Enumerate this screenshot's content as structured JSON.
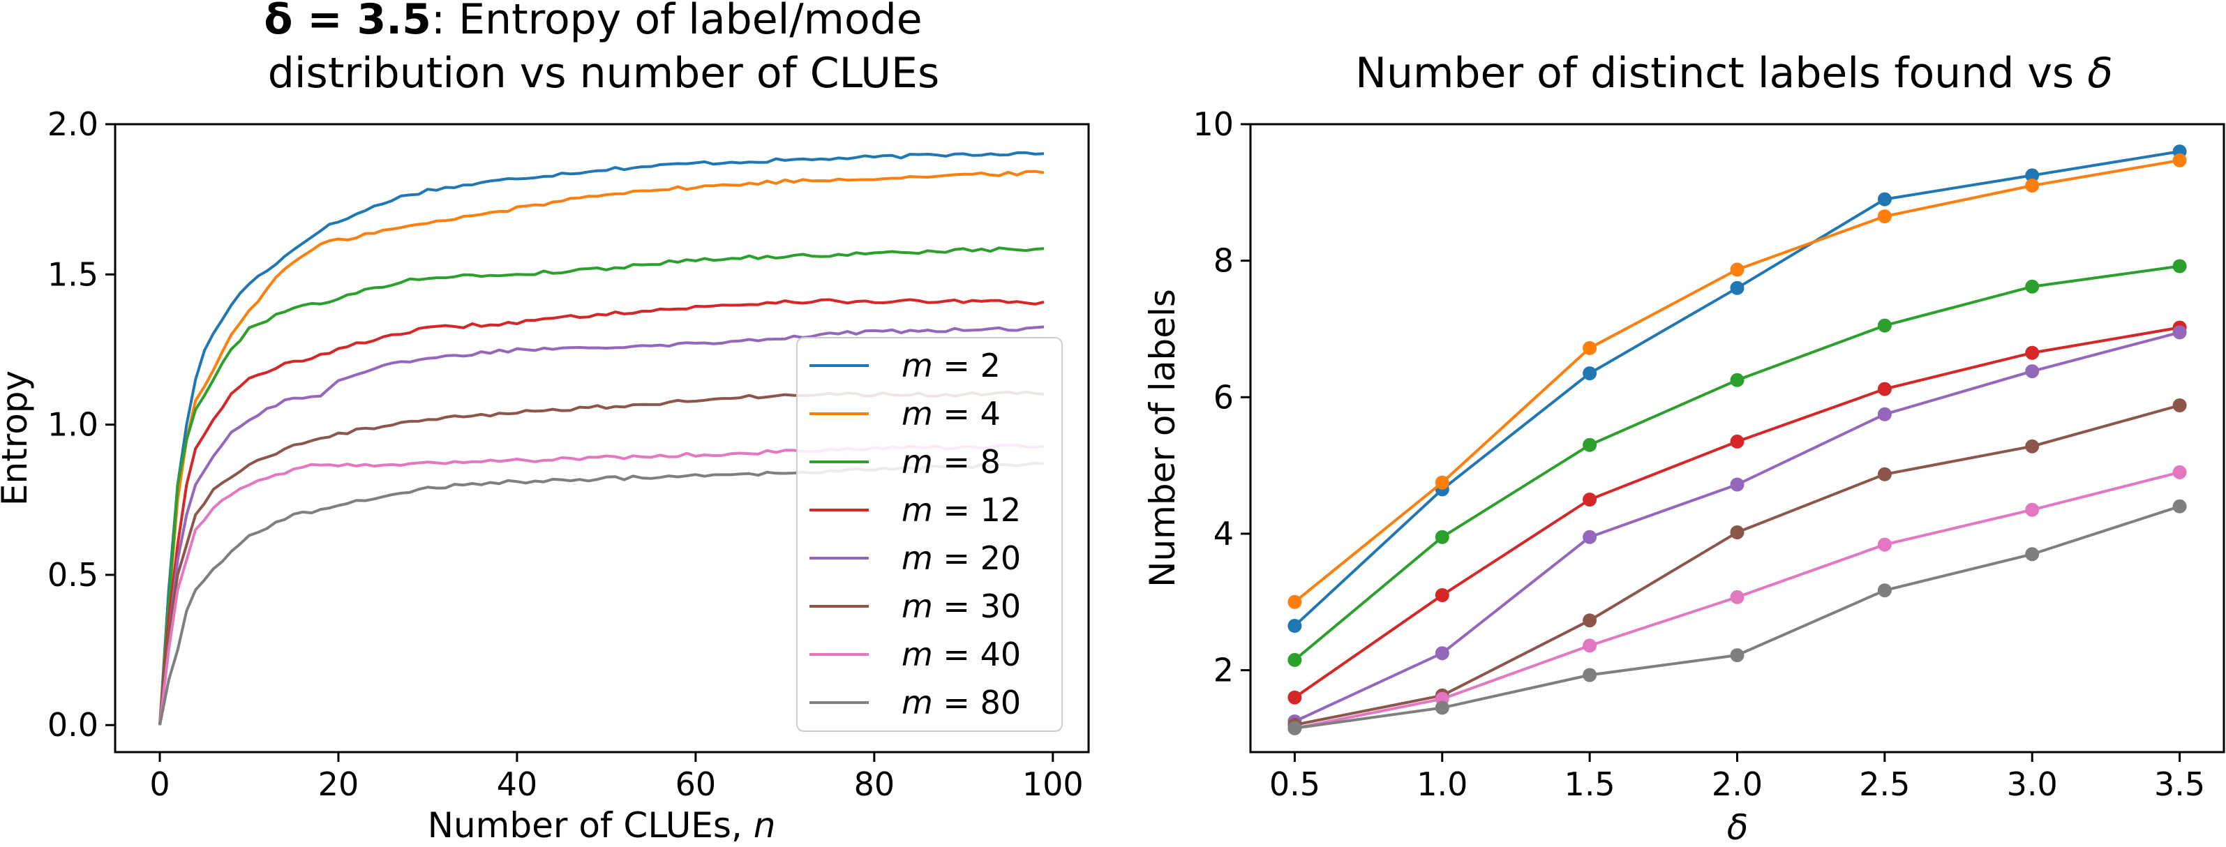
{
  "chart_data": [
    {
      "type": "line",
      "title_bold": "δ = 3.5",
      "title_rest": ": Entropy of label/mode",
      "title_line2": "distribution vs number of CLUEs",
      "xlabel": "Number of CLUEs, ",
      "xlabel_var": "n",
      "ylabel": "Entropy",
      "xlim": [
        -5,
        104
      ],
      "ylim": [
        -0.09,
        2.0
      ],
      "xticks": [
        0,
        20,
        40,
        60,
        80,
        100
      ],
      "yticks": [
        0.0,
        0.5,
        1.0,
        1.5,
        2.0
      ],
      "xtick_labels": [
        "0",
        "20",
        "40",
        "60",
        "80",
        "100"
      ],
      "ytick_labels": [
        "0.0",
        "0.5",
        "1.0",
        "1.5",
        "2.0"
      ],
      "legend_position": "lower-right",
      "series": [
        {
          "name": "m = 2",
          "color": "#1f77b4",
          "keypoints": [
            [
              0,
              0
            ],
            [
              1,
              0.45
            ],
            [
              2,
              0.8
            ],
            [
              3,
              1.0
            ],
            [
              4,
              1.15
            ],
            [
              5,
              1.25
            ],
            [
              6,
              1.3
            ],
            [
              8,
              1.4
            ],
            [
              10,
              1.47
            ],
            [
              14,
              1.56
            ],
            [
              18,
              1.65
            ],
            [
              22,
              1.7
            ],
            [
              26,
              1.75
            ],
            [
              30,
              1.78
            ],
            [
              40,
              1.82
            ],
            [
              50,
              1.85
            ],
            [
              60,
              1.87
            ],
            [
              70,
              1.88
            ],
            [
              80,
              1.89
            ],
            [
              90,
              1.9
            ],
            [
              99,
              1.905
            ]
          ]
        },
        {
          "name": "m = 4",
          "color": "#ff7f0e",
          "keypoints": [
            [
              0,
              0
            ],
            [
              1,
              0.4
            ],
            [
              2,
              0.75
            ],
            [
              3,
              0.95
            ],
            [
              4,
              1.08
            ],
            [
              6,
              1.18
            ],
            [
              8,
              1.3
            ],
            [
              10,
              1.38
            ],
            [
              14,
              1.52
            ],
            [
              18,
              1.6
            ],
            [
              24,
              1.64
            ],
            [
              30,
              1.67
            ],
            [
              40,
              1.72
            ],
            [
              50,
              1.77
            ],
            [
              60,
              1.79
            ],
            [
              70,
              1.81
            ],
            [
              80,
              1.82
            ],
            [
              90,
              1.83
            ],
            [
              99,
              1.84
            ]
          ]
        },
        {
          "name": "m = 8",
          "color": "#2ca02c",
          "keypoints": [
            [
              0,
              0
            ],
            [
              1,
              0.4
            ],
            [
              2,
              0.8
            ],
            [
              3,
              0.95
            ],
            [
              4,
              1.05
            ],
            [
              5,
              1.1
            ],
            [
              6,
              1.15
            ],
            [
              8,
              1.25
            ],
            [
              10,
              1.32
            ],
            [
              14,
              1.38
            ],
            [
              20,
              1.42
            ],
            [
              26,
              1.47
            ],
            [
              30,
              1.49
            ],
            [
              40,
              1.5
            ],
            [
              50,
              1.52
            ],
            [
              60,
              1.55
            ],
            [
              70,
              1.56
            ],
            [
              80,
              1.57
            ],
            [
              90,
              1.58
            ],
            [
              99,
              1.585
            ]
          ]
        },
        {
          "name": "m = 12",
          "color": "#d62728",
          "keypoints": [
            [
              0,
              0
            ],
            [
              1,
              0.35
            ],
            [
              2,
              0.6
            ],
            [
              3,
              0.8
            ],
            [
              4,
              0.92
            ],
            [
              6,
              1.02
            ],
            [
              8,
              1.1
            ],
            [
              10,
              1.15
            ],
            [
              14,
              1.2
            ],
            [
              20,
              1.25
            ],
            [
              26,
              1.3
            ],
            [
              30,
              1.32
            ],
            [
              40,
              1.34
            ],
            [
              50,
              1.37
            ],
            [
              60,
              1.39
            ],
            [
              70,
              1.41
            ],
            [
              80,
              1.41
            ],
            [
              90,
              1.41
            ],
            [
              99,
              1.405
            ]
          ]
        },
        {
          "name": "m = 20",
          "color": "#9467bd",
          "keypoints": [
            [
              0,
              0
            ],
            [
              1,
              0.3
            ],
            [
              2,
              0.55
            ],
            [
              3,
              0.7
            ],
            [
              4,
              0.8
            ],
            [
              6,
              0.9
            ],
            [
              8,
              0.97
            ],
            [
              10,
              1.02
            ],
            [
              14,
              1.08
            ],
            [
              18,
              1.1
            ],
            [
              20,
              1.15
            ],
            [
              26,
              1.2
            ],
            [
              30,
              1.22
            ],
            [
              40,
              1.25
            ],
            [
              50,
              1.26
            ],
            [
              60,
              1.27
            ],
            [
              70,
              1.29
            ],
            [
              80,
              1.31
            ],
            [
              90,
              1.315
            ],
            [
              99,
              1.32
            ]
          ]
        },
        {
          "name": "m = 30",
          "color": "#8c564b",
          "keypoints": [
            [
              0,
              0
            ],
            [
              1,
              0.3
            ],
            [
              2,
              0.5
            ],
            [
              3,
              0.6
            ],
            [
              4,
              0.7
            ],
            [
              6,
              0.78
            ],
            [
              8,
              0.83
            ],
            [
              10,
              0.87
            ],
            [
              14,
              0.92
            ],
            [
              20,
              0.97
            ],
            [
              26,
              1.0
            ],
            [
              30,
              1.02
            ],
            [
              40,
              1.04
            ],
            [
              50,
              1.06
            ],
            [
              60,
              1.08
            ],
            [
              70,
              1.1
            ],
            [
              80,
              1.1
            ],
            [
              90,
              1.1
            ],
            [
              99,
              1.105
            ]
          ]
        },
        {
          "name": "m = 40",
          "color": "#e377c2",
          "keypoints": [
            [
              0,
              0
            ],
            [
              1,
              0.25
            ],
            [
              2,
              0.45
            ],
            [
              3,
              0.55
            ],
            [
              4,
              0.65
            ],
            [
              6,
              0.72
            ],
            [
              8,
              0.77
            ],
            [
              10,
              0.8
            ],
            [
              14,
              0.84
            ],
            [
              18,
              0.87
            ],
            [
              24,
              0.86
            ],
            [
              30,
              0.87
            ],
            [
              40,
              0.88
            ],
            [
              50,
              0.89
            ],
            [
              60,
              0.9
            ],
            [
              70,
              0.91
            ],
            [
              80,
              0.92
            ],
            [
              90,
              0.925
            ],
            [
              99,
              0.93
            ]
          ]
        },
        {
          "name": "m = 80",
          "color": "#7f7f7f",
          "keypoints": [
            [
              0,
              0
            ],
            [
              1,
              0.15
            ],
            [
              2,
              0.25
            ],
            [
              3,
              0.38
            ],
            [
              4,
              0.45
            ],
            [
              6,
              0.52
            ],
            [
              8,
              0.58
            ],
            [
              10,
              0.63
            ],
            [
              14,
              0.69
            ],
            [
              20,
              0.73
            ],
            [
              26,
              0.77
            ],
            [
              30,
              0.79
            ],
            [
              40,
              0.81
            ],
            [
              50,
              0.82
            ],
            [
              60,
              0.83
            ],
            [
              70,
              0.84
            ],
            [
              80,
              0.85
            ],
            [
              90,
              0.86
            ],
            [
              99,
              0.87
            ]
          ]
        }
      ]
    },
    {
      "type": "line",
      "title": "Number of distinct labels found vs ",
      "title_var": "δ",
      "xlabel": "",
      "xlabel_var": "δ",
      "ylabel": "Number of labels",
      "xlim": [
        0.35,
        3.65
      ],
      "ylim": [
        0.8,
        10.0
      ],
      "xticks": [
        0.5,
        1.0,
        1.5,
        2.0,
        2.5,
        3.0,
        3.5
      ],
      "yticks": [
        2,
        4,
        6,
        8,
        10
      ],
      "xtick_labels": [
        "0.5",
        "1.0",
        "1.5",
        "2.0",
        "2.5",
        "3.0",
        "3.5"
      ],
      "ytick_labels": [
        "2",
        "4",
        "6",
        "8",
        "10"
      ],
      "x": [
        0.5,
        1.0,
        1.5,
        2.0,
        2.5,
        3.0,
        3.5
      ],
      "series": [
        {
          "color": "#1f77b4",
          "values": [
            2.65,
            4.65,
            6.35,
            7.6,
            8.9,
            9.25,
            9.6
          ]
        },
        {
          "color": "#ff7f0e",
          "values": [
            3.0,
            4.75,
            6.72,
            7.87,
            8.65,
            9.1,
            9.47
          ]
        },
        {
          "color": "#2ca02c",
          "values": [
            2.15,
            3.95,
            5.3,
            6.25,
            7.05,
            7.62,
            7.92
          ]
        },
        {
          "color": "#d62728",
          "values": [
            1.6,
            3.1,
            4.5,
            5.35,
            6.12,
            6.65,
            7.02
          ]
        },
        {
          "color": "#9467bd",
          "values": [
            1.25,
            2.25,
            3.95,
            4.72,
            5.75,
            6.38,
            6.95
          ]
        },
        {
          "color": "#8c564b",
          "values": [
            1.2,
            1.63,
            2.73,
            4.02,
            4.87,
            5.28,
            5.88
          ]
        },
        {
          "color": "#e377c2",
          "values": [
            1.15,
            1.58,
            2.36,
            3.07,
            3.84,
            4.35,
            4.9
          ]
        },
        {
          "color": "#7f7f7f",
          "values": [
            1.15,
            1.45,
            1.93,
            2.22,
            3.17,
            3.7,
            4.4
          ]
        }
      ]
    }
  ]
}
